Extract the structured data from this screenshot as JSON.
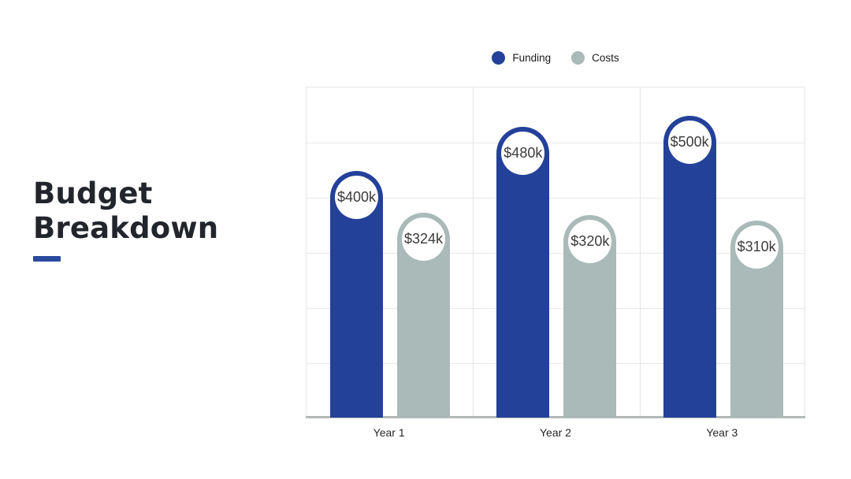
{
  "title": {
    "line1": "Budget",
    "line2": "Breakdown",
    "accent_color": "#2a4a9e",
    "text_color": "#22252b"
  },
  "legend": {
    "position": "top-center",
    "items": [
      {
        "label": "Funding",
        "color": "#24419a"
      },
      {
        "label": "Costs",
        "color": "#a9bab8"
      }
    ]
  },
  "chart_data": {
    "type": "bar",
    "title": "",
    "categories": [
      "Year 1",
      "Year 2",
      "Year 3"
    ],
    "series": [
      {
        "name": "Funding",
        "color": "#24419a",
        "values": [
          400,
          480,
          500
        ],
        "labels": [
          "$400k",
          "$480k",
          "$500k"
        ]
      },
      {
        "name": "Costs",
        "color": "#a9bab8",
        "values": [
          324,
          320,
          310
        ],
        "labels": [
          "$324k",
          "$320k",
          "$310k"
        ]
      }
    ],
    "unit": "thousand dollars",
    "xlabel": "",
    "ylabel": "",
    "ylim": [
      0,
      600
    ],
    "gridline_step": 100,
    "grid": true,
    "y_tick_labels_shown": false,
    "legend_position": "top",
    "value_label_style": "circle-cap",
    "bar_corner": "rounded-top"
  }
}
